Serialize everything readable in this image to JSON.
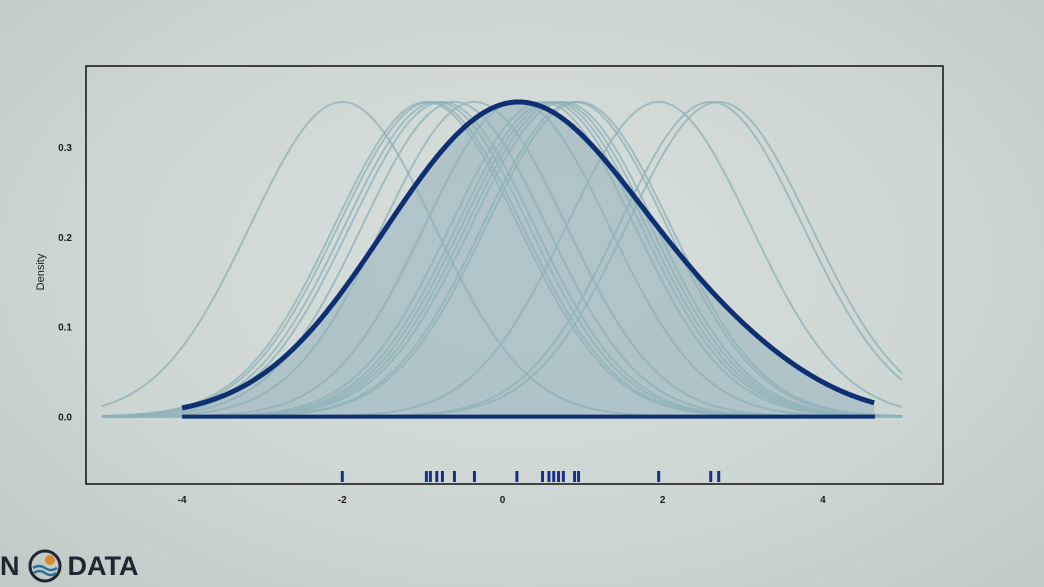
{
  "chart_data": {
    "type": "line",
    "title": "",
    "xlabel": "",
    "ylabel": "Density",
    "xlim": [
      -5.2,
      5.5
    ],
    "ylim": [
      -0.075,
      0.39
    ],
    "x_ticks": [
      -4,
      -2,
      0,
      2,
      4
    ],
    "x_tick_labels": [
      "-4",
      "-2",
      "0",
      "2",
      "4"
    ],
    "y_ticks": [
      0.0,
      0.1,
      0.2,
      0.3
    ],
    "y_tick_labels": [
      "0.0",
      "0.1",
      "0.2",
      "0.3"
    ],
    "kernel": "gaussian",
    "bandwidth": 1.15,
    "observations": [
      -2.0,
      -0.95,
      -0.9,
      -0.82,
      -0.75,
      -0.6,
      -0.35,
      0.18,
      0.5,
      0.58,
      0.64,
      0.7,
      0.76,
      0.9,
      0.95,
      1.95,
      2.6,
      2.7
    ],
    "kernel_curve_peak": 0.35,
    "density_peak": 0.35,
    "density_peak_at": 0.52,
    "grid": false,
    "colors": {
      "kernel_line": "#8fb2b8",
      "density_line": "#0e2f72",
      "density_fill": "#a9bfc6",
      "rug": "#1a2f8a",
      "frame": "#111111"
    }
  },
  "logo": {
    "text_left": "N",
    "text_right": "DATA"
  }
}
